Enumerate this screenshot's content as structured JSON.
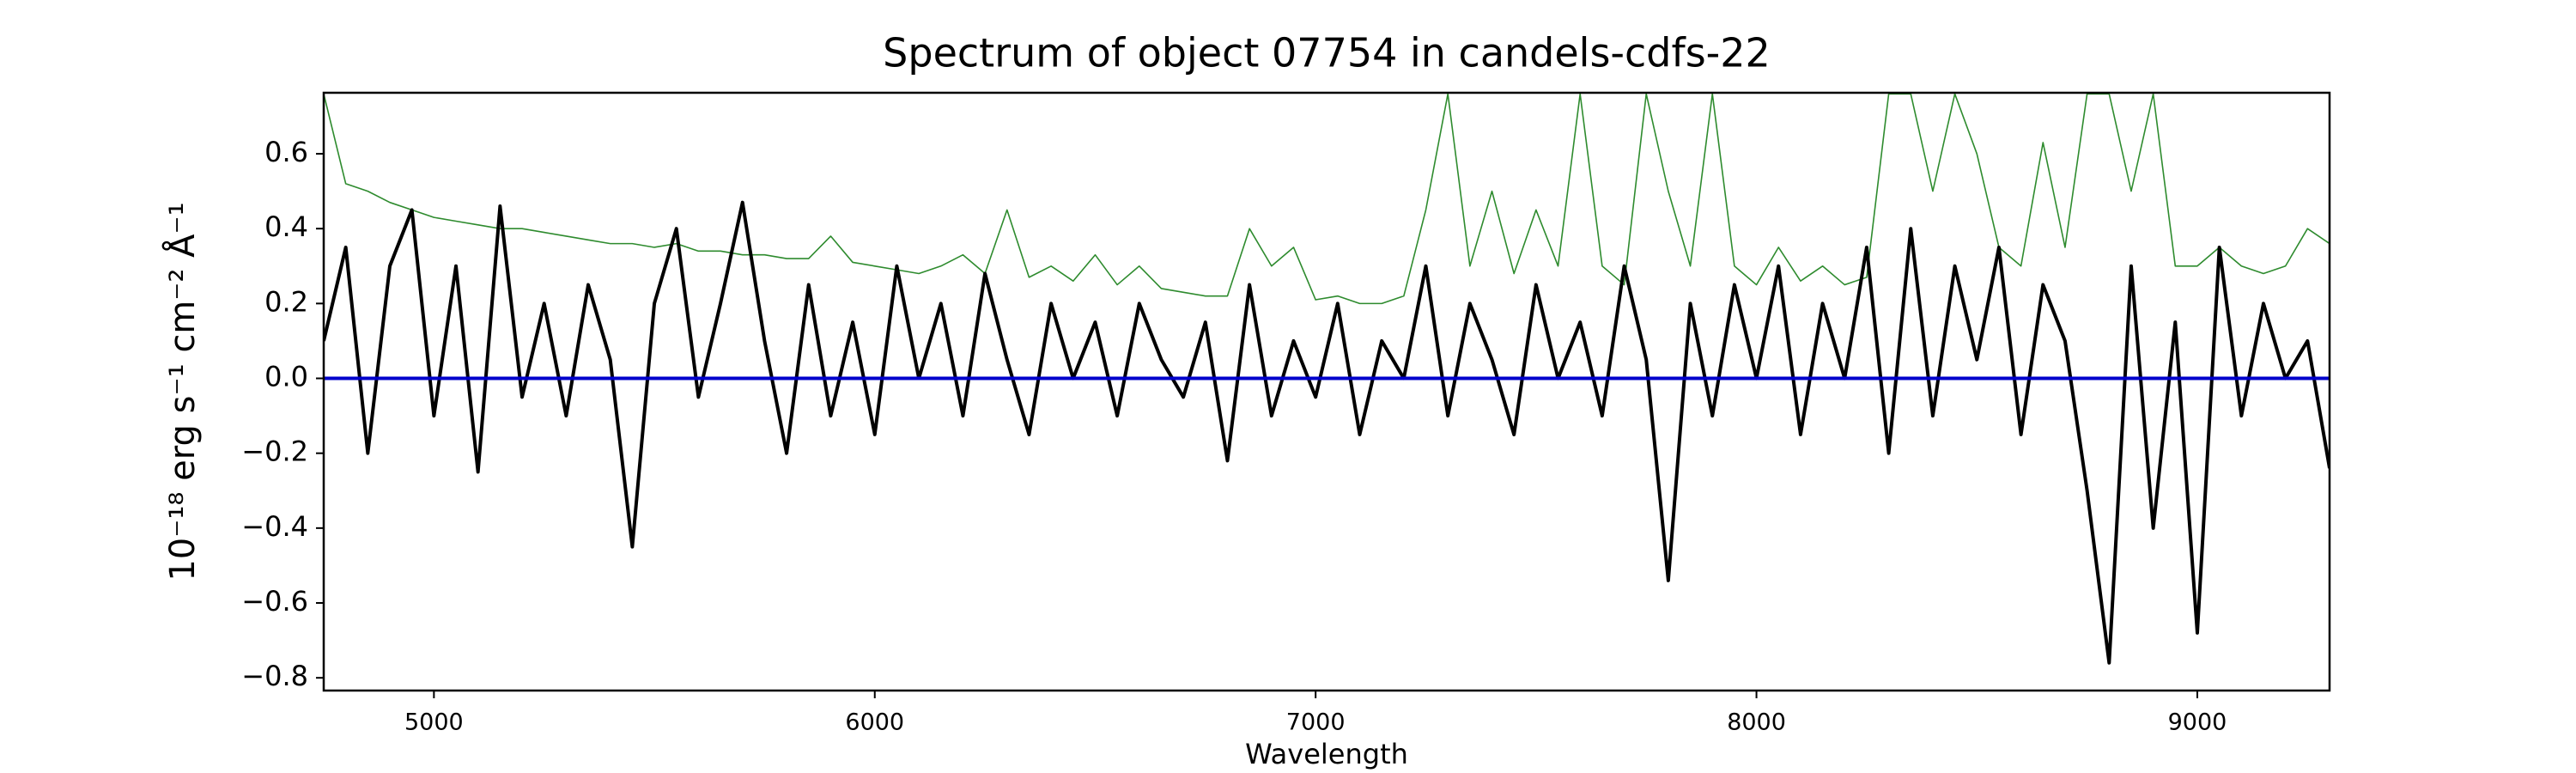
{
  "chart_data": {
    "type": "line",
    "title": "Spectrum of object 07754 in candels-cdfs-22",
    "x_label": "Wavelength",
    "y_label": "10⁻¹⁸ erg s⁻¹ cm⁻² Å⁻¹",
    "xlim": [
      4750,
      9300
    ],
    "ylim": [
      -0.834,
      0.763
    ],
    "xticks": [
      5000,
      6000,
      7000,
      8000,
      9000
    ],
    "yticks": [
      {
        "value": -0.8,
        "label": "−0.8"
      },
      {
        "value": -0.6,
        "label": "−0.6"
      },
      {
        "value": -0.4,
        "label": "−0.4"
      },
      {
        "value": -0.2,
        "label": "−0.2"
      },
      {
        "value": 0,
        "label": "0.0"
      },
      0.2,
      0.4,
      0.6
    ],
    "x": [
      4750,
      4800,
      4850,
      4900,
      4950,
      5000,
      5050,
      5100,
      5150,
      5200,
      5250,
      5300,
      5350,
      5400,
      5450,
      5500,
      5550,
      5600,
      5650,
      5700,
      5750,
      5800,
      5850,
      5900,
      5950,
      6000,
      6050,
      6100,
      6150,
      6200,
      6250,
      6300,
      6350,
      6400,
      6450,
      6500,
      6550,
      6600,
      6650,
      6700,
      6750,
      6800,
      6850,
      6900,
      6950,
      7000,
      7050,
      7100,
      7150,
      7200,
      7250,
      7300,
      7350,
      7400,
      7450,
      7500,
      7550,
      7600,
      7650,
      7700,
      7750,
      7800,
      7850,
      7900,
      7950,
      8000,
      8050,
      8100,
      8150,
      8200,
      8250,
      8300,
      8350,
      8400,
      8450,
      8500,
      8550,
      8600,
      8650,
      8700,
      8750,
      8800,
      8850,
      8900,
      8950,
      9000,
      9050,
      9100,
      9150,
      9200,
      9250,
      9300
    ],
    "series": [
      {
        "color": "#2e8b2e",
        "width": 1.6,
        "values": [
          0.76,
          0.52,
          0.5,
          0.47,
          0.45,
          0.43,
          0.42,
          0.41,
          0.4,
          0.4,
          0.39,
          0.38,
          0.37,
          0.36,
          0.36,
          0.35,
          0.36,
          0.34,
          0.34,
          0.33,
          0.33,
          0.32,
          0.32,
          0.38,
          0.31,
          0.3,
          0.29,
          0.28,
          0.3,
          0.33,
          0.28,
          0.45,
          0.27,
          0.3,
          0.26,
          0.33,
          0.25,
          0.3,
          0.24,
          0.23,
          0.22,
          0.22,
          0.4,
          0.3,
          0.35,
          0.21,
          0.22,
          0.2,
          0.2,
          0.22,
          0.45,
          0.76,
          0.3,
          0.5,
          0.28,
          0.45,
          0.3,
          0.76,
          0.3,
          0.25,
          0.76,
          0.5,
          0.3,
          0.76,
          0.3,
          0.25,
          0.35,
          0.26,
          0.3,
          0.25,
          0.27,
          0.76,
          0.76,
          0.5,
          0.76,
          0.6,
          0.35,
          0.3,
          0.63,
          0.35,
          0.76,
          0.76,
          0.5,
          0.76,
          0.3,
          0.3,
          0.35,
          0.3,
          0.28,
          0.3,
          0.4,
          0.36
        ]
      },
      {
        "color": "#000000",
        "width": 4,
        "values": [
          0.1,
          0.35,
          -0.2,
          0.3,
          0.45,
          -0.1,
          0.3,
          -0.25,
          0.46,
          -0.05,
          0.2,
          -0.1,
          0.25,
          0.05,
          -0.45,
          0.2,
          0.4,
          -0.05,
          0.2,
          0.47,
          0.1,
          -0.2,
          0.25,
          -0.1,
          0.15,
          -0.15,
          0.3,
          0,
          0.2,
          -0.1,
          0.28,
          0.05,
          -0.15,
          0.2,
          0,
          0.15,
          -0.1,
          0.2,
          0.05,
          -0.05,
          0.15,
          -0.22,
          0.25,
          -0.1,
          0.1,
          -0.05,
          0.2,
          -0.15,
          0.1,
          0,
          0.3,
          -0.1,
          0.2,
          0.05,
          -0.15,
          0.25,
          0,
          0.15,
          -0.1,
          0.3,
          0.05,
          -0.54,
          0.2,
          -0.1,
          0.25,
          0,
          0.3,
          -0.15,
          0.2,
          0,
          0.35,
          -0.2,
          0.4,
          -0.1,
          0.3,
          0.05,
          0.35,
          -0.15,
          0.25,
          0.1,
          -0.3,
          -0.76,
          0.3,
          -0.4,
          0.15,
          -0.68,
          0.35,
          -0.1,
          0.2,
          0,
          0.1,
          -0.24
        ]
      },
      {
        "color": "#0000cc",
        "width": 4,
        "values": [
          0,
          0,
          0,
          0,
          0,
          0,
          0,
          0,
          0,
          0,
          0,
          0,
          0,
          0,
          0,
          0,
          0,
          0,
          0,
          0,
          0,
          0,
          0,
          0,
          0,
          0,
          0,
          0,
          0,
          0,
          0,
          0,
          0,
          0,
          0,
          0,
          0,
          0,
          0,
          0,
          0,
          0,
          0,
          0,
          0,
          0,
          0,
          0,
          0,
          0,
          0,
          0,
          0,
          0,
          0,
          0,
          0,
          0,
          0,
          0,
          0,
          0,
          0,
          0,
          0,
          0,
          0,
          0,
          0,
          0,
          0,
          0,
          0,
          0,
          0,
          0,
          0,
          0,
          0,
          0,
          0,
          0,
          0,
          0,
          0,
          0,
          0,
          0,
          0,
          0,
          0,
          0
        ]
      }
    ]
  }
}
